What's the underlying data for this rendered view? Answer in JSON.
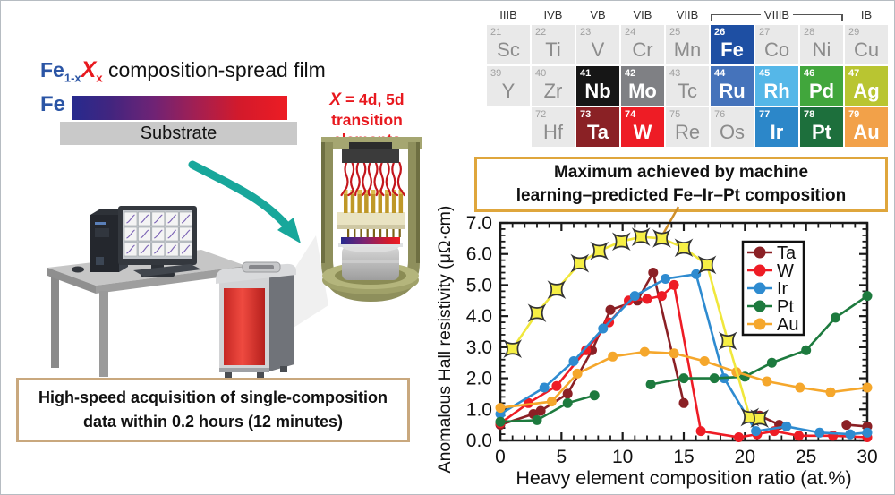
{
  "figure": {
    "left_panel": {
      "film_label": {
        "fe": "Fe",
        "fe_sub": "1-x",
        "x": "X",
        "x_sub": "x",
        "rest": " composition-spread film"
      },
      "fe_bar_label": "Fe",
      "substrate_label": "Substrate",
      "x_annotation": {
        "x": "X",
        "line1_rest": " = 4d, 5d",
        "line2": "transition elements",
        "color": "#e8191f"
      },
      "caption_box": {
        "line1": "High-speed acquisition of single-composition",
        "line2": "data within 0.2 hours (12 minutes)",
        "border_color": "#c9a87e"
      },
      "illustration": {
        "monitor_plots": {
          "cols": 5,
          "rows": 3
        }
      }
    },
    "max_box": {
      "line1": "Maximum achieved by machine",
      "line2": "learning–predicted Fe–Ir–Pt composition",
      "border_color": "#dfa63c",
      "connector_color": "#cf8f2a"
    },
    "periodic_table": {
      "group_headers": [
        {
          "label": "IIIB"
        },
        {
          "label": "IVB"
        },
        {
          "label": "VB"
        },
        {
          "label": "VIB"
        },
        {
          "label": "VIIB"
        },
        {
          "label": "VIIIB",
          "span": 3,
          "bracket": true
        },
        {
          "label": "IB"
        }
      ],
      "rows": [
        [
          {
            "num": "21",
            "sym": "Sc"
          },
          {
            "num": "22",
            "sym": "Ti"
          },
          {
            "num": "23",
            "sym": "V"
          },
          {
            "num": "24",
            "sym": "Cr"
          },
          {
            "num": "25",
            "sym": "Mn"
          },
          {
            "num": "26",
            "sym": "Fe",
            "hl": "#1e4fa3"
          },
          {
            "num": "27",
            "sym": "Co"
          },
          {
            "num": "28",
            "sym": "Ni"
          },
          {
            "num": "29",
            "sym": "Cu"
          }
        ],
        [
          {
            "num": "39",
            "sym": "Y"
          },
          {
            "num": "40",
            "sym": "Zr"
          },
          {
            "num": "41",
            "sym": "Nb",
            "hl": "#161616"
          },
          {
            "num": "42",
            "sym": "Mo",
            "hl": "#7f8084"
          },
          {
            "num": "43",
            "sym": "Tc"
          },
          {
            "num": "44",
            "sym": "Ru",
            "hl": "#4573bb"
          },
          {
            "num": "45",
            "sym": "Rh",
            "hl": "#55b7e8"
          },
          {
            "num": "46",
            "sym": "Pd",
            "hl": "#41a63c"
          },
          {
            "num": "47",
            "sym": "Ag",
            "hl": "#b9c531"
          }
        ],
        [
          {
            "empty": true
          },
          {
            "num": "72",
            "sym": "Hf"
          },
          {
            "num": "73",
            "sym": "Ta",
            "hl": "#8a2125"
          },
          {
            "num": "74",
            "sym": "W",
            "hl": "#ee1c25"
          },
          {
            "num": "75",
            "sym": "Re"
          },
          {
            "num": "76",
            "sym": "Os"
          },
          {
            "num": "77",
            "sym": "Ir",
            "hl": "#2c87c9"
          },
          {
            "num": "78",
            "sym": "Pt",
            "hl": "#1d6f3c"
          },
          {
            "num": "79",
            "sym": "Au",
            "hl": "#f2a149"
          }
        ]
      ]
    }
  },
  "chart_data": {
    "type": "line",
    "xlabel": "Heavy element composition ratio (at.%)",
    "ylabel": "Anomalous Hall resistivity (μΩ·cm)",
    "xlim": [
      0,
      30
    ],
    "ylim": [
      0,
      7
    ],
    "x_major_ticks": [
      0,
      5,
      10,
      15,
      20,
      25,
      30
    ],
    "y_major_ticks": [
      "0.0",
      "1.0",
      "2.0",
      "3.0",
      "4.0",
      "5.0",
      "6.0",
      "7.0"
    ],
    "x_minor_step": 1,
    "y_minor_step": 0.2,
    "grid": false,
    "legend_position": "upper right",
    "series": [
      {
        "name": "Ta",
        "color": "#8b2025",
        "marker": "circle",
        "points": [
          [
            0,
            0.5
          ],
          [
            2.7,
            0.85
          ],
          [
            3.3,
            0.95
          ],
          [
            5.5,
            1.5
          ],
          [
            7.5,
            2.9
          ],
          [
            9,
            4.2
          ],
          [
            11.2,
            4.5
          ],
          [
            12.5,
            5.4
          ],
          [
            15,
            1.2
          ],
          null,
          [
            21.2,
            0.8
          ],
          [
            22.8,
            0.5
          ],
          null,
          [
            28.3,
            0.5
          ],
          [
            30,
            0.45
          ]
        ]
      },
      {
        "name": "W",
        "color": "#ee1c25",
        "marker": "circle",
        "points": [
          [
            0,
            0.55
          ],
          [
            2.3,
            1.2
          ],
          [
            4.6,
            1.75
          ],
          [
            7,
            2.9
          ],
          [
            8.9,
            3.8
          ],
          [
            10.5,
            4.5
          ],
          [
            12,
            4.55
          ],
          [
            13.2,
            4.65
          ],
          [
            14.2,
            5.0
          ],
          [
            16.4,
            0.3
          ],
          [
            19.5,
            0.1
          ],
          [
            21,
            0.2
          ],
          [
            22.4,
            0.3
          ],
          [
            24.4,
            0.15
          ],
          [
            27.2,
            0.15
          ],
          [
            30,
            0.1
          ]
        ]
      },
      {
        "name": "Ir",
        "color": "#2e8bd0",
        "marker": "circle",
        "points": [
          [
            0,
            0.85
          ],
          [
            3.6,
            1.7
          ],
          [
            6,
            2.55
          ],
          [
            8.4,
            3.6
          ],
          [
            11,
            4.65
          ],
          [
            13.5,
            5.2
          ],
          [
            16,
            5.35
          ],
          [
            18.3,
            2.0
          ],
          [
            20.9,
            0.3
          ],
          [
            23.4,
            0.45
          ],
          [
            26.1,
            0.25
          ],
          [
            28.6,
            0.2
          ],
          [
            30,
            0.25
          ]
        ]
      },
      {
        "name": "Pt",
        "color": "#1d7a3e",
        "marker": "circle",
        "points": [
          [
            0,
            0.6
          ],
          [
            3,
            0.65
          ],
          [
            5.5,
            1.2
          ],
          [
            7.7,
            1.45
          ],
          null,
          [
            12.3,
            1.8
          ],
          [
            15,
            2.0
          ],
          [
            17.5,
            2.0
          ],
          [
            20,
            2.05
          ],
          [
            22.2,
            2.5
          ],
          [
            25,
            2.9
          ],
          [
            27.4,
            3.95
          ],
          [
            30,
            4.65
          ]
        ]
      },
      {
        "name": "Au",
        "color": "#f5a72c",
        "marker": "circle",
        "points": [
          [
            0,
            1.05
          ],
          [
            4.2,
            1.25
          ],
          [
            6.3,
            2.15
          ],
          [
            9.2,
            2.7
          ],
          [
            11.8,
            2.85
          ],
          [
            14.2,
            2.8
          ],
          [
            16.7,
            2.55
          ],
          [
            19.3,
            2.2
          ],
          [
            21.8,
            1.9
          ],
          [
            24.5,
            1.7
          ],
          [
            27,
            1.55
          ],
          [
            30,
            1.7
          ]
        ]
      },
      {
        "name": "Fe–Ir–Pt (ML predicted)",
        "color": "#f0e73c",
        "marker": "star",
        "marker_fill": "#f6ef45",
        "in_legend": false,
        "points": [
          [
            1,
            2.95
          ],
          [
            3,
            4.1
          ],
          [
            4.6,
            4.85
          ],
          [
            6.5,
            5.7
          ],
          [
            8.1,
            6.1
          ],
          [
            9.9,
            6.4
          ],
          [
            11.5,
            6.55
          ],
          [
            13.2,
            6.5
          ],
          [
            15,
            6.2
          ],
          [
            16.9,
            5.65
          ],
          [
            18.6,
            3.2
          ],
          [
            20.4,
            0.75
          ],
          [
            21.2,
            0.7
          ]
        ]
      }
    ]
  }
}
